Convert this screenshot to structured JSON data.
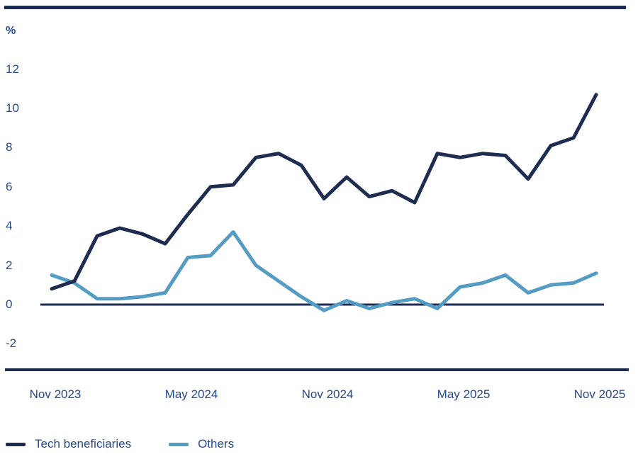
{
  "chart_data": {
    "type": "line",
    "title": "",
    "xlabel": "",
    "ylabel": "%",
    "ylim": [
      -2,
      12
    ],
    "grid": false,
    "legend_position": "bottom-left",
    "colors": {
      "axis": "#1e2c50",
      "text": "#254a8d"
    },
    "y_ticks": [
      12,
      10,
      8,
      6,
      4,
      2,
      0,
      -2
    ],
    "x_tick_labels": [
      "Nov 2023",
      "May 2024",
      "Nov 2024",
      "May 2025",
      "Nov 2025"
    ],
    "x_tick_indices": [
      0,
      6,
      12,
      18,
      24
    ],
    "categories": [
      "Nov 2023",
      "Dec 2023",
      "Jan 2024",
      "Feb 2024",
      "Mar 2024",
      "Apr 2024",
      "May 2024",
      "Jun 2024",
      "Jul 2024",
      "Aug 2024",
      "Sep 2024",
      "Oct 2024",
      "Nov 2024",
      "Dec 2024",
      "Jan 2025",
      "Feb 2025",
      "Mar 2025",
      "Apr 2025",
      "May 2025",
      "Jun 2025",
      "Jul 2025",
      "Aug 2025",
      "Sep 2025",
      "Oct 2025",
      "Nov 2025"
    ],
    "series": [
      {
        "name": "Tech beneficiaries",
        "color": "#1e2c50",
        "values": [
          0.8,
          1.2,
          3.5,
          3.9,
          3.6,
          3.1,
          4.6,
          6.0,
          6.1,
          7.5,
          7.7,
          7.1,
          5.4,
          6.5,
          5.5,
          5.8,
          5.2,
          7.7,
          7.5,
          7.7,
          7.6,
          6.4,
          8.1,
          8.5,
          10.7
        ]
      },
      {
        "name": "Others",
        "color": "#559cc4",
        "values": [
          1.5,
          1.1,
          0.3,
          0.3,
          0.4,
          0.6,
          2.4,
          2.5,
          3.7,
          2.0,
          1.2,
          0.4,
          -0.3,
          0.2,
          -0.2,
          0.1,
          0.3,
          -0.2,
          0.9,
          1.1,
          1.5,
          0.6,
          1.0,
          1.1,
          1.6
        ]
      }
    ]
  }
}
